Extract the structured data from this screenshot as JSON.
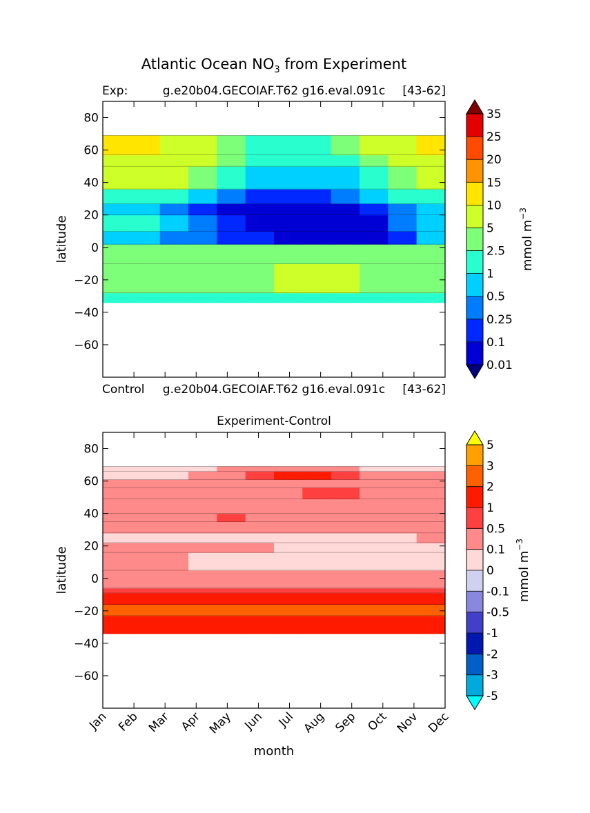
{
  "figure": {
    "title_main": "Atlantic Ocean NO",
    "title_sub": "3",
    "title_rest": " from Experiment"
  },
  "chart_data": [
    {
      "type": "heatmap",
      "title_left": "Exp:",
      "title_center": "g.e20b04.GECOIAF.T62 g16.eval.091c",
      "title_right": "[43-62]",
      "bottom_left": "Control",
      "bottom_center": "g.e20b04.GECOIAF.T62 g16.eval.091c",
      "bottom_right": "[43-62]",
      "ylabel": "latitude",
      "xlabel": "",
      "ylim": [
        -80,
        90
      ],
      "y_ticks": [
        "80",
        "60",
        "40",
        "20",
        "0",
        "−20",
        "−40",
        "−60"
      ],
      "x": [
        0,
        1,
        2,
        3,
        4,
        5,
        6,
        7,
        8,
        9,
        10,
        11
      ],
      "colorbar": {
        "unit": "mmol m",
        "unit_sup": "−3",
        "extend": "both",
        "levels": [
          "0.01",
          "0.1",
          "0.25",
          "0.5",
          "1",
          "2.5",
          "5",
          "10",
          "15",
          "20",
          "25",
          "35"
        ],
        "colors": [
          "#00007f",
          "#0000d5",
          "#0028ff",
          "#007cff",
          "#00d0ff",
          "#29ffce",
          "#7dff7a",
          "#ceff29",
          "#ffe500",
          "#ff9400",
          "#ff4a00",
          "#e30000",
          "#7f0000"
        ]
      },
      "data_lat_range": [
        -34,
        69
      ],
      "bands": [
        {
          "lat_low": -34,
          "lat_high": -28,
          "values": [
            1,
            1,
            1,
            1,
            1,
            1,
            1,
            1,
            1,
            1,
            1,
            1
          ]
        },
        {
          "lat_low": -28,
          "lat_high": -10,
          "values": [
            2.5,
            2.5,
            2.5,
            2.5,
            2.5,
            2.5,
            5,
            5,
            5,
            2.5,
            2.5,
            2.5
          ]
        },
        {
          "lat_low": -10,
          "lat_high": 2,
          "values": [
            2.5,
            2.5,
            2.5,
            2.5,
            2.5,
            2.5,
            2.5,
            2.5,
            2.5,
            2.5,
            2.5,
            2.5
          ]
        },
        {
          "lat_low": 2,
          "lat_high": 10,
          "values": [
            0.5,
            0.5,
            0.25,
            0.25,
            0.1,
            0.1,
            0.01,
            0.01,
            0.01,
            0.01,
            0.1,
            0.5
          ]
        },
        {
          "lat_low": 10,
          "lat_high": 20,
          "values": [
            1,
            1,
            0.5,
            0.25,
            0.1,
            0.01,
            0.01,
            0.01,
            0.01,
            0.01,
            0.25,
            0.5
          ]
        },
        {
          "lat_low": 20,
          "lat_high": 27,
          "values": [
            0.5,
            0.5,
            0.25,
            0.1,
            0.01,
            0.01,
            0.01,
            0.01,
            0.01,
            0.1,
            0.25,
            0.5
          ]
        },
        {
          "lat_low": 27,
          "lat_high": 36,
          "values": [
            1,
            1,
            1,
            0.5,
            0.25,
            0.1,
            0.1,
            0.1,
            0.25,
            0.5,
            1,
            1
          ]
        },
        {
          "lat_low": 36,
          "lat_high": 50,
          "values": [
            5,
            5,
            5,
            2.5,
            1,
            0.5,
            0.5,
            0.5,
            0.5,
            1,
            2.5,
            5
          ]
        },
        {
          "lat_low": 50,
          "lat_high": 57,
          "values": [
            5,
            5,
            5,
            5,
            2.5,
            1,
            1,
            1,
            1,
            2.5,
            5,
            5
          ]
        },
        {
          "lat_low": 57,
          "lat_high": 69,
          "values": [
            10,
            10,
            5,
            5,
            2.5,
            1,
            1,
            1,
            2.5,
            5,
            5,
            10
          ]
        }
      ]
    },
    {
      "type": "heatmap",
      "title": "Experiment-Control",
      "ylabel": "latitude",
      "xlabel": "month",
      "ylim": [
        -80,
        90
      ],
      "y_ticks": [
        "80",
        "60",
        "40",
        "20",
        "0",
        "−20",
        "−40",
        "−60"
      ],
      "x_ticks": [
        "Jan",
        "Feb",
        "Mar",
        "Apr",
        "May",
        "Jun",
        "Jul",
        "Aug",
        "Sep",
        "Oct",
        "Nov",
        "Dec"
      ],
      "colorbar": {
        "unit": "mmol m",
        "unit_sup": "−3",
        "extend": "both",
        "levels": [
          "-5",
          "-3",
          "-2",
          "-1",
          "-0.5",
          "-0.1",
          "0",
          "0.1",
          "0.5",
          "1",
          "2",
          "3",
          "5"
        ],
        "colors": [
          "#00ffff",
          "#00aadd",
          "#0060c8",
          "#0018b0",
          "#4040c8",
          "#8888e0",
          "#d0d0f0",
          "#ffd8d8",
          "#ff8a8a",
          "#ff4040",
          "#ff1a00",
          "#ff6000",
          "#ffa000",
          "#ffff00"
        ]
      },
      "data_lat_range": [
        -34,
        69
      ],
      "bands": [
        {
          "lat_low": -34,
          "lat_high": -23,
          "values": [
            1,
            1,
            1,
            1,
            1,
            1,
            1,
            1,
            1,
            1,
            1,
            1
          ]
        },
        {
          "lat_low": -23,
          "lat_high": -16,
          "values": [
            2,
            2,
            2,
            2,
            2,
            2,
            2,
            2,
            2,
            2,
            2,
            2
          ]
        },
        {
          "lat_low": -16,
          "lat_high": -9,
          "values": [
            1,
            1,
            1,
            1,
            1,
            1,
            1,
            1,
            1,
            1,
            1,
            1
          ]
        },
        {
          "lat_low": -9,
          "lat_high": -6,
          "values": [
            0.5,
            0.5,
            0.5,
            0.5,
            0.5,
            0.5,
            0.5,
            0.5,
            0.5,
            0.5,
            0.5,
            0.5
          ]
        },
        {
          "lat_low": -6,
          "lat_high": 5,
          "values": [
            0.1,
            0.1,
            0.1,
            0.1,
            0.1,
            0.1,
            0.1,
            0.1,
            0.1,
            0.1,
            0.1,
            0.1
          ]
        },
        {
          "lat_low": 5,
          "lat_high": 16,
          "values": [
            0.1,
            0.1,
            0.1,
            0,
            0,
            0,
            0,
            0,
            0,
            0,
            0,
            0
          ]
        },
        {
          "lat_low": 16,
          "lat_high": 22,
          "values": [
            0.1,
            0.1,
            0.1,
            0.1,
            0.1,
            0.1,
            0,
            0,
            0,
            0,
            0,
            0
          ]
        },
        {
          "lat_low": 22,
          "lat_high": 28,
          "values": [
            0,
            0,
            0,
            0,
            0,
            0,
            0,
            0,
            0,
            0,
            0,
            0.1
          ]
        },
        {
          "lat_low": 28,
          "lat_high": 35,
          "values": [
            0.1,
            0.1,
            0.1,
            0.1,
            0.1,
            0.1,
            0.1,
            0.1,
            0.1,
            0.1,
            0.1,
            0.1
          ]
        },
        {
          "lat_low": 35,
          "lat_high": 40,
          "values": [
            0.1,
            0.1,
            0.1,
            0.1,
            0.5,
            0.1,
            0.1,
            0.1,
            0.1,
            0.1,
            0.1,
            0.1
          ]
        },
        {
          "lat_low": 40,
          "lat_high": 49,
          "values": [
            0.1,
            0.1,
            0.1,
            0.1,
            0.1,
            0.1,
            0.1,
            0.1,
            0.1,
            0.1,
            0.1,
            0.1
          ]
        },
        {
          "lat_low": 49,
          "lat_high": 56,
          "values": [
            0.1,
            0.1,
            0.1,
            0.1,
            0.1,
            0.1,
            0.1,
            0.5,
            0.5,
            0.1,
            0.1,
            0.1
          ]
        },
        {
          "lat_low": 56,
          "lat_high": 61,
          "values": [
            0.1,
            0.1,
            0.1,
            0.1,
            0.1,
            0.1,
            0.1,
            0.1,
            0.1,
            0.1,
            0.1,
            0.1
          ]
        },
        {
          "lat_low": 61,
          "lat_high": 66,
          "values": [
            0,
            0,
            0,
            0.1,
            0.1,
            0.5,
            1,
            1,
            0.5,
            0.1,
            0.1,
            0.1
          ]
        },
        {
          "lat_low": 66,
          "lat_high": 69,
          "values": [
            0,
            0,
            0,
            0,
            0.1,
            0.1,
            0.1,
            0.1,
            0.1,
            0,
            0,
            0
          ]
        }
      ]
    }
  ]
}
